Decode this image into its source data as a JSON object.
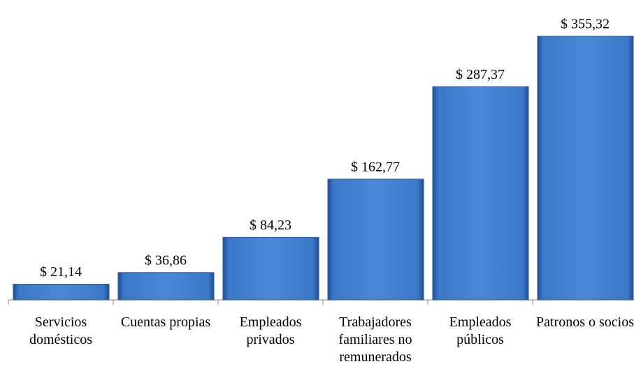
{
  "chart_data": {
    "type": "bar",
    "categories": [
      "Servicios domésticos",
      "Cuentas propias",
      "Empleados privados",
      "Trabajadores familiares no remunerados",
      "Empleados públicos",
      "Patronos o socios"
    ],
    "values": [
      21.14,
      36.86,
      84.23,
      162.77,
      287.37,
      355.32
    ],
    "value_labels": [
      "$ 21,14",
      "$ 36,86",
      "$ 84,23",
      "$ 162,77",
      "$ 287,37",
      "$ 355,32"
    ],
    "color": "#3a78c8"
  }
}
